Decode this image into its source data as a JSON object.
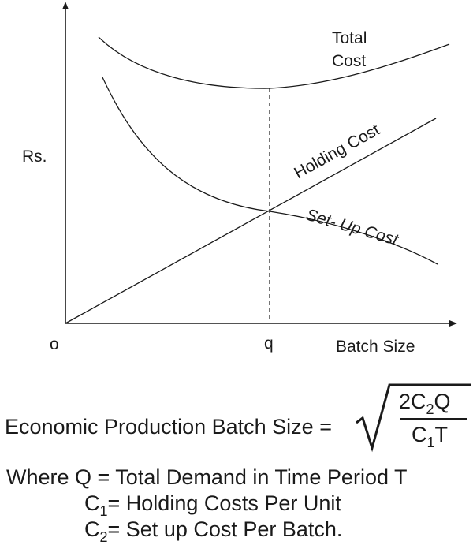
{
  "axis": {
    "y_label": "Rs.",
    "x_label": "Batch Size",
    "origin_label": "o",
    "q_label": "q"
  },
  "curves": {
    "total_line1": "Total",
    "total_line2": "Cost",
    "holding": "Holding Cost",
    "setup": "Set- Up Cost"
  },
  "formula": {
    "lhs": "Economic Production Batch Size =",
    "num_a": "2C",
    "num_sub": "2",
    "num_b": "Q",
    "den_a": "C",
    "den_sub": "1",
    "den_b": "T"
  },
  "legend": {
    "where": "Where Q = Total Demand in Time Period T",
    "c1_a": "C",
    "c1_sub": "1",
    "c1_b": "= Holding Costs Per Unit",
    "c2_a": "C",
    "c2_sub": "2",
    "c2_b": "= Set up Cost Per Batch."
  }
}
